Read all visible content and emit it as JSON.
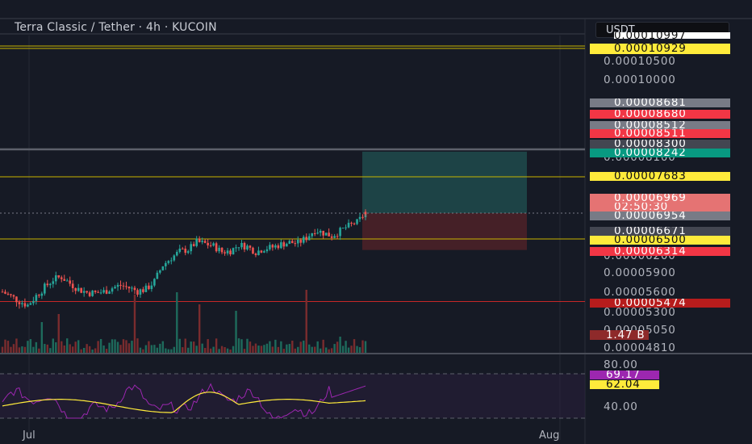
{
  "chart_header": {
    "title": "Terra Classic / Tether · 4h · KUCOIN",
    "currency": "USDT"
  },
  "colors": {
    "background": "#161a25",
    "up": "#26a69a",
    "down": "#ef5350",
    "support_line": "#c8b400",
    "support_tag": "#ffeb3b",
    "red_line": "#c62828",
    "profit_zone": "#1f4e4f",
    "loss_zone": "#4a2128",
    "rsi_line": "#9c27b0",
    "rsi_ma": "#ffeb3b"
  },
  "price_axis": {
    "ticks": [
      "0.00010500",
      "0.00010000",
      "0.00008100",
      "0.00006200",
      "0.00005900",
      "0.00005600",
      "0.00005300",
      "0.00005050",
      "0.00004810"
    ],
    "partial_top": "0.00010997"
  },
  "price_tags": [
    {
      "text": "0.00010929",
      "bg": "#ffeb3b",
      "fg": "#111111"
    },
    {
      "text": "0.00008681",
      "bg": "#787b86",
      "fg": "#ffffff"
    },
    {
      "text": "0.00008680",
      "bg": "#f23645",
      "fg": "#ffffff"
    },
    {
      "text": "0.00008512",
      "bg": "#787b86",
      "fg": "#ffffff"
    },
    {
      "text": "0.00008511",
      "bg": "#f23645",
      "fg": "#ffffff"
    },
    {
      "text": "0.00008300",
      "bg": "#434651",
      "fg": "#ffffff"
    },
    {
      "text": "0.00008242",
      "bg": "#089981",
      "fg": "#ffffff"
    },
    {
      "text": "0.00007683",
      "bg": "#ffeb3b",
      "fg": "#111111"
    },
    {
      "text": "0.00006969",
      "bg": "#e57373",
      "fg": "#ffffff"
    },
    {
      "text": "02:50:30",
      "bg": "#e57373",
      "fg": "#ffffff"
    },
    {
      "text": "0.00006954",
      "bg": "#787b86",
      "fg": "#ffffff"
    },
    {
      "text": "0.00006671",
      "bg": "#434651",
      "fg": "#ffffff"
    },
    {
      "text": "0.00006500",
      "bg": "#ffeb3b",
      "fg": "#111111"
    },
    {
      "text": "0.00006314",
      "bg": "#f23645",
      "fg": "#ffffff"
    },
    {
      "text": "0.00005474",
      "bg": "#b71c1c",
      "fg": "#ffffff"
    },
    {
      "text": "1.47 B",
      "bg": "#8e2a2a",
      "fg": "#ffffff"
    }
  ],
  "rsi_axis": {
    "ticks": [
      "80.00",
      "40.00"
    ],
    "value_tag": {
      "text": "69.17",
      "bg": "#9c27b0",
      "fg": "#ffffff"
    },
    "ma_tag": {
      "text": "62.04",
      "bg": "#ffeb3b",
      "fg": "#111111"
    }
  },
  "time_axis": [
    "Jul",
    "Aug"
  ],
  "chart_data": {
    "type": "candlestick",
    "title": "Terra Classic / Tether · 4h · KUCOIN",
    "ylim": [
      4.81e-05,
      0.00011
    ],
    "horizontal_levels": [
      0.00010929,
      8.3e-05,
      7.683e-05,
      6.5e-05,
      5.474e-05
    ],
    "position": {
      "entry": 6.954e-05,
      "target": 8.242e-05,
      "stop": 6.314e-05
    },
    "close_series_approx": [
      5.62e-05,
      5.55e-05,
      5.48e-05,
      5.42e-05,
      5.56e-05,
      5.69e-05,
      5.81e-05,
      5.85e-05,
      5.75e-05,
      5.66e-05,
      5.61e-05,
      5.6e-05,
      5.62e-05,
      5.68e-05,
      5.72e-05,
      5.68e-05,
      5.63e-05,
      5.66e-05,
      5.78e-05,
      6.05e-05,
      6.18e-05,
      6.29e-05,
      6.32e-05,
      6.45e-05,
      6.42e-05,
      6.38e-05,
      6.28e-05,
      6.3e-05,
      6.4e-05,
      6.37e-05,
      6.28e-05,
      6.34e-05,
      6.36e-05,
      6.41e-05,
      6.44e-05,
      6.43e-05,
      6.52e-05,
      6.65e-05,
      6.6e-05,
      6.55e-05,
      6.63e-05,
      6.72e-05,
      6.79e-05,
      6.95e-05
    ],
    "volume_last": "1.47 B",
    "rsi": {
      "value": 69.17,
      "ma": 62.04,
      "levels": [
        80,
        40
      ]
    },
    "x_labels": [
      "Jul",
      "Aug"
    ]
  }
}
